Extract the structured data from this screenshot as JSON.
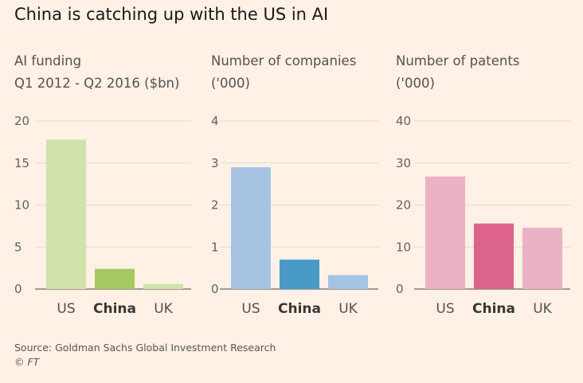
{
  "title": "China is catching up with the US in AI",
  "source": "Source: Goldman Sachs Global Investment Research",
  "copyright": "© FT",
  "chart_data": [
    {
      "type": "bar",
      "subtitle_lines": [
        "AI funding",
        "Q1 2012 - Q2 2016 ($bn)"
      ],
      "categories": [
        "US",
        "China",
        "UK"
      ],
      "values": [
        17.8,
        2.4,
        0.6
      ],
      "ylim": [
        0,
        20
      ],
      "yticks": [
        "20",
        "15",
        "10",
        "5",
        "0"
      ],
      "colors": [
        "#d1e3aa",
        "#a6c964",
        "#d1e3aa"
      ],
      "highlight": "China"
    },
    {
      "type": "bar",
      "subtitle_lines": [
        "Number of companies",
        "('000)"
      ],
      "categories": [
        "US",
        "China",
        "UK"
      ],
      "values": [
        2.9,
        0.7,
        0.33
      ],
      "ylim": [
        0,
        4
      ],
      "yticks": [
        "4",
        "3",
        "2",
        "1",
        "0"
      ],
      "colors": [
        "#a7c3e3",
        "#4899c6",
        "#a7c3e3"
      ],
      "highlight": "China"
    },
    {
      "type": "bar",
      "subtitle_lines": [
        "Number of patents",
        "('000)"
      ],
      "categories": [
        "US",
        "China",
        "UK"
      ],
      "values": [
        26.8,
        15.6,
        14.6
      ],
      "ylim": [
        0,
        40
      ],
      "yticks": [
        "40",
        "30",
        "20",
        "10",
        "0"
      ],
      "colors": [
        "#ebb1c4",
        "#dc6389",
        "#ebb1c4"
      ],
      "highlight": "China"
    }
  ]
}
